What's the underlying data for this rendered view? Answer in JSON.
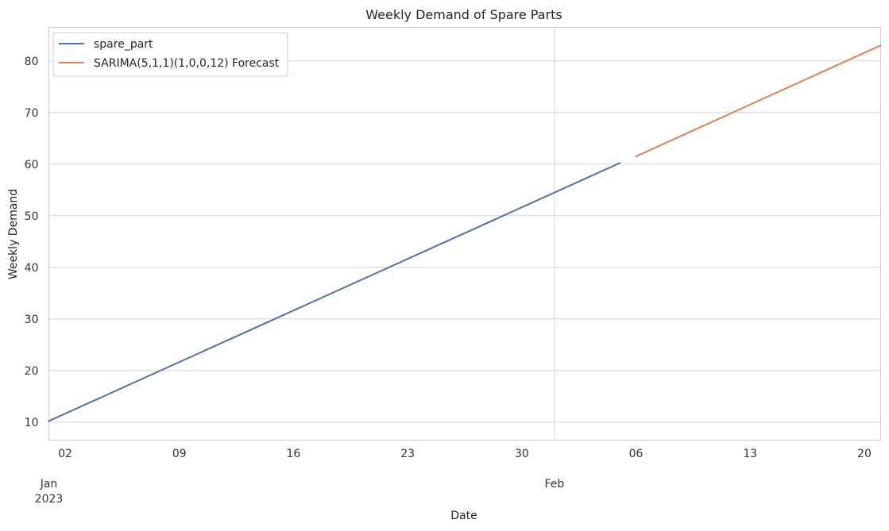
{
  "chart_data": {
    "type": "line",
    "title": "Weekly Demand of Spare Parts",
    "xlabel": "Date",
    "ylabel": "Weekly Demand",
    "x_tick_labels": [
      "02",
      "09",
      "16",
      "23",
      "30",
      "06",
      "13",
      "20"
    ],
    "x_tick_dates": [
      "2023-01-02",
      "2023-01-09",
      "2023-01-16",
      "2023-01-23",
      "2023-01-30",
      "2023-02-06",
      "2023-02-13",
      "2023-02-20"
    ],
    "x_major_labels": [
      {
        "label": "Jan",
        "sublabel": "2023",
        "date": "2023-01-01"
      },
      {
        "label": "Feb",
        "sublabel": "",
        "date": "2023-02-01"
      }
    ],
    "xlim": [
      "2023-01-01",
      "2023-02-21"
    ],
    "y_ticks": [
      10,
      20,
      30,
      40,
      50,
      60,
      70,
      80
    ],
    "ylim": [
      6.5,
      86.5
    ],
    "grid": true,
    "legend_position": "top-left",
    "series": [
      {
        "name": "spare_part",
        "color": "#4c72b0",
        "points": [
          {
            "x": "2023-01-01",
            "y": 10.2
          },
          {
            "x": "2023-02-05",
            "y": 60.2
          }
        ]
      },
      {
        "name": "SARIMA(5,1,1)(1,0,0,12) Forecast",
        "color": "#dd8452",
        "points": [
          {
            "x": "2023-02-06",
            "y": 61.5
          },
          {
            "x": "2023-02-21",
            "y": 83.0
          }
        ]
      }
    ]
  }
}
